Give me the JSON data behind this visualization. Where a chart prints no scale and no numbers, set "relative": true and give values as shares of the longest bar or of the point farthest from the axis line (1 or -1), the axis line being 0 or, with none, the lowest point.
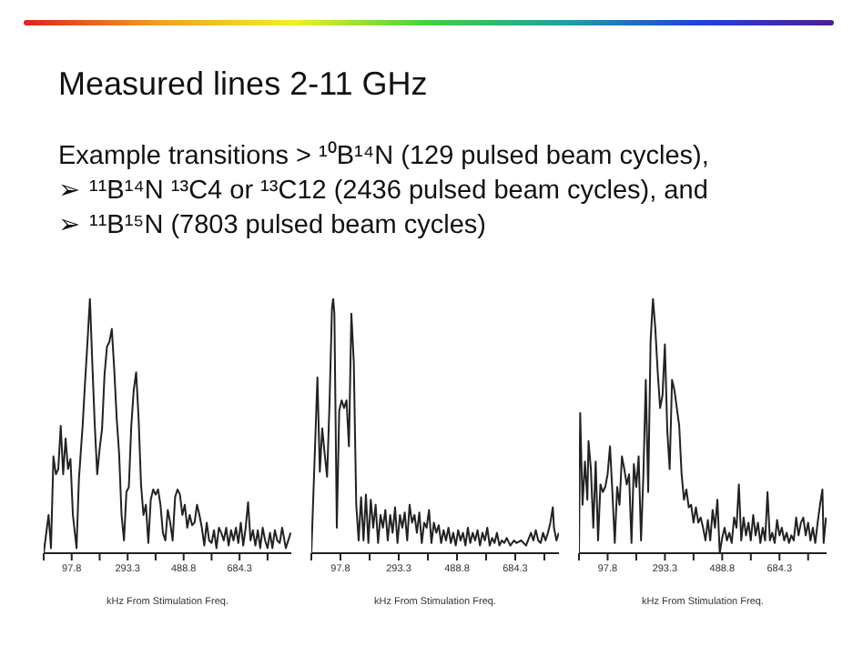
{
  "chart_data": [
    {
      "type": "other",
      "title": "Measured lines 2-11 GHz",
      "annotations": [
        "Example transitions > ¹⁰B¹⁴N (129 pulsed beam cycles),",
        "➢ ¹¹B¹⁴N ¹³C4 or ¹³C12 (2436 pulsed beam cycles), and",
        "➢ ¹¹B¹⁵N (7803 pulsed beam cycles)"
      ]
    },
    {
      "type": "line",
      "relative": true,
      "xlabel": "kHz From Stimulation Freq.",
      "xlim": [
        0,
        865
      ],
      "xticks": [
        {
          "value": 0,
          "label": null
        },
        97.8,
        {
          "value": 195.5,
          "label": null
        },
        293.3,
        {
          "value": 391,
          "label": null
        },
        488.8,
        {
          "value": 586.5,
          "label": null
        },
        684.3,
        {
          "value": 782,
          "label": null
        }
      ],
      "grid": false,
      "legend": false,
      "marker": "none",
      "series": [
        {
          "color": "#222222",
          "x": [
            0,
            17,
            25.5,
            34,
            42.5,
            51,
            59.5,
            68,
            76.5,
            85,
            93.5,
            102,
            114.8,
            123,
            136,
            144.5,
            153,
            161.5,
            170,
            178.5,
            187,
            195.5,
            204,
            212.5,
            221,
            229.5,
            238,
            246.5,
            255,
            263.5,
            272,
            280.5,
            289,
            297.5,
            306,
            314.5,
            323,
            331.5,
            340,
            348.5,
            357,
            365.5,
            374,
            382.5,
            391,
            399.5,
            408,
            416.5,
            425,
            433.5,
            442,
            450.5,
            459,
            467.5,
            476,
            484.5,
            493,
            501.5,
            510,
            518.5,
            527,
            535.5,
            544,
            552.5,
            561,
            569.5,
            578,
            586.5,
            595,
            603.5,
            612,
            620.5,
            629,
            637.5,
            646,
            654.5,
            663,
            671.5,
            680,
            688.5,
            697,
            705.5,
            714,
            722.5,
            731,
            739.5,
            748,
            756.5,
            765,
            773.5,
            782,
            790.5,
            799,
            807.5,
            816,
            824.5,
            833,
            845.8,
            862.8
          ],
          "values": [
            0,
            0.15,
            0.02,
            0.38,
            0.31,
            0.33,
            0.5,
            0.31,
            0.45,
            0.33,
            0.37,
            0.15,
            0.02,
            0.29,
            0.5,
            0.67,
            0.83,
            1.0,
            0.74,
            0.5,
            0.31,
            0.41,
            0.49,
            0.7,
            0.81,
            0.83,
            0.88,
            0.72,
            0.53,
            0.39,
            0.15,
            0.05,
            0.24,
            0.26,
            0.5,
            0.64,
            0.71,
            0.53,
            0.27,
            0.15,
            0.19,
            0.04,
            0.21,
            0.25,
            0.23,
            0.25,
            0.19,
            0.08,
            0.05,
            0.17,
            0.12,
            0.05,
            0.22,
            0.25,
            0.23,
            0.15,
            0.19,
            0.1,
            0.15,
            0.11,
            0.12,
            0.19,
            0.15,
            0.1,
            0.03,
            0.12,
            0.05,
            0.04,
            0.09,
            0.02,
            0.1,
            0.08,
            0.05,
            0.1,
            0.03,
            0.09,
            0.05,
            0.1,
            0.04,
            0.12,
            0.03,
            0.1,
            0.2,
            0.05,
            0.09,
            0.03,
            0.09,
            0.02,
            0.1,
            0.05,
            0.02,
            0.08,
            0.02,
            0.09,
            0.05,
            0.04,
            0.1,
            0.02,
            0.08
          ]
        }
      ]
    },
    {
      "type": "line",
      "relative": true,
      "xlabel": "kHz From Stimulation Freq.",
      "xlim": [
        0,
        831
      ],
      "xticks": [
        {
          "value": 0,
          "label": null
        },
        97.8,
        {
          "value": 195.5,
          "label": null
        },
        293.3,
        {
          "value": 391,
          "label": null
        },
        488.8,
        {
          "value": 586.5,
          "label": null
        },
        684.3,
        {
          "value": 782,
          "label": null
        }
      ],
      "grid": false,
      "legend": false,
      "marker": "none",
      "series": [
        {
          "color": "#222222",
          "x": [
            0,
            12.2,
            20.4,
            28.5,
            36.6,
            44.8,
            52.9,
            61.1,
            69.2,
            73.3,
            77.4,
            85.5,
            93.6,
            101.8,
            109.9,
            118.1,
            126.2,
            134.4,
            142.5,
            150.7,
            158.8,
            166.9,
            175.1,
            183.2,
            191.4,
            199.5,
            207.7,
            215.8,
            224,
            232.1,
            240.2,
            248.4,
            256.5,
            264.7,
            272.8,
            281,
            289.1,
            297.3,
            305.4,
            313.5,
            321.7,
            329.8,
            338,
            346.1,
            354.3,
            362.4,
            370.6,
            378.7,
            386.8,
            395,
            403.1,
            411.3,
            419.4,
            427.6,
            435.7,
            443.9,
            452,
            460.1,
            468.3,
            476.4,
            484.6,
            492.7,
            500.9,
            509,
            517.2,
            525.3,
            533.4,
            541.6,
            549.7,
            557.9,
            566,
            574.2,
            582.3,
            590.5,
            598.6,
            606.7,
            614.9,
            623,
            631.2,
            639.3,
            647.5,
            655.6,
            667.8,
            680,
            688.2,
            704.5,
            720.7,
            737,
            745.2,
            753.3,
            761.5,
            769.6,
            777.8,
            785.9,
            794.1,
            802.2,
            810.4,
            814.4,
            822.6,
            830.7
          ],
          "values": [
            0,
            0.41,
            0.69,
            0.32,
            0.49,
            0.39,
            0.3,
            0.59,
            0.96,
            1.0,
            0.94,
            0.1,
            0.56,
            0.6,
            0.57,
            0.6,
            0.42,
            0.94,
            0.75,
            0.19,
            0.05,
            0.22,
            0.05,
            0.23,
            0.04,
            0.21,
            0.1,
            0.19,
            0.04,
            0.15,
            0.1,
            0.17,
            0.05,
            0.15,
            0.08,
            0.18,
            0.04,
            0.15,
            0.1,
            0.16,
            0.05,
            0.19,
            0.12,
            0.15,
            0.08,
            0.16,
            0.04,
            0.12,
            0.1,
            0.17,
            0.04,
            0.12,
            0.08,
            0.11,
            0.04,
            0.09,
            0.05,
            0.1,
            0.04,
            0.08,
            0.03,
            0.09,
            0.05,
            0.08,
            0.03,
            0.1,
            0.04,
            0.08,
            0.05,
            0.09,
            0.03,
            0.08,
            0.05,
            0.1,
            0.03,
            0.06,
            0.04,
            0.08,
            0.03,
            0.05,
            0.04,
            0.06,
            0.03,
            0.05,
            0.04,
            0.05,
            0.03,
            0.08,
            0.05,
            0.09,
            0.05,
            0.04,
            0.08,
            0.05,
            0.08,
            0.12,
            0.18,
            0.1,
            0.05,
            0.08
          ]
        }
      ]
    },
    {
      "type": "line",
      "relative": true,
      "xlabel": "kHz From Stimulation Freq.",
      "xlim": [
        0,
        845
      ],
      "xticks": [
        {
          "value": 0,
          "label": null
        },
        97.8,
        {
          "value": 195.5,
          "label": null
        },
        293.3,
        {
          "value": 391,
          "label": null
        },
        488.8,
        {
          "value": 586.5,
          "label": null
        },
        684.3,
        {
          "value": 782,
          "label": null
        }
      ],
      "grid": false,
      "legend": false,
      "marker": "none",
      "series": [
        {
          "color": "#222222",
          "x": [
            0,
            4.1,
            12.2,
            20.4,
            28.5,
            32.6,
            40.7,
            48.9,
            57,
            65.2,
            73.3,
            81.4,
            89.6,
            97.7,
            105.9,
            114,
            122.2,
            130.3,
            138.4,
            146.6,
            154.7,
            162.9,
            171,
            179.2,
            187.3,
            195.5,
            203.6,
            211.8,
            219.9,
            228,
            236.2,
            244.3,
            252.5,
            260.6,
            268.8,
            276.9,
            285.1,
            293.2,
            301.4,
            309.5,
            317.6,
            325.8,
            333.9,
            342.1,
            350.2,
            358.4,
            366.5,
            374.7,
            382.8,
            390.9,
            399.1,
            407.2,
            415.4,
            423.5,
            431.7,
            439.8,
            448,
            456.1,
            464.2,
            472.4,
            480.5,
            488.7,
            496.8,
            505,
            513.1,
            521.3,
            529.4,
            537.6,
            545.7,
            553.8,
            562,
            570.1,
            578.3,
            586.4,
            594.6,
            602.7,
            610.8,
            619,
            627.1,
            635.3,
            643.4,
            651.6,
            659.7,
            667.9,
            676,
            684.2,
            692.3,
            700.5,
            708.6,
            716.8,
            724.9,
            733,
            741.2,
            749.3,
            757.5,
            765.6,
            773.8,
            781.9,
            790.1,
            798.2,
            806.4,
            814.5,
            822.6,
            830.8,
            834.9,
            843
          ],
          "values": [
            0,
            0.55,
            0.19,
            0.36,
            0.21,
            0.44,
            0.33,
            0.1,
            0.36,
            0.05,
            0.27,
            0.24,
            0.26,
            0.31,
            0.42,
            0.24,
            0.04,
            0.26,
            0.19,
            0.38,
            0.33,
            0.27,
            0.31,
            0.04,
            0.35,
            0.26,
            0.38,
            0.05,
            0.31,
            0.68,
            0.24,
            0.83,
            1.0,
            0.88,
            0.71,
            0.57,
            0.62,
            0.82,
            0.48,
            0.33,
            0.68,
            0.64,
            0.57,
            0.5,
            0.31,
            0.21,
            0.25,
            0.18,
            0.19,
            0.12,
            0.18,
            0.12,
            0.14,
            0.1,
            0.05,
            0.13,
            0.05,
            0.17,
            0.1,
            0.21,
            0,
            0.06,
            0.1,
            0.05,
            0.08,
            0.04,
            0.14,
            0.1,
            0.27,
            0.05,
            0.14,
            0.07,
            0.12,
            0.05,
            0.15,
            0.07,
            0.12,
            0.04,
            0.1,
            0.05,
            0.24,
            0.05,
            0.08,
            0.04,
            0.13,
            0.07,
            0.1,
            0.05,
            0.08,
            0.04,
            0.07,
            0.05,
            0.14,
            0.07,
            0.12,
            0.14,
            0.07,
            0.12,
            0.05,
            0.1,
            0.04,
            0.12,
            0.19,
            0.25,
            0.04,
            0.14
          ]
        }
      ]
    }
  ]
}
